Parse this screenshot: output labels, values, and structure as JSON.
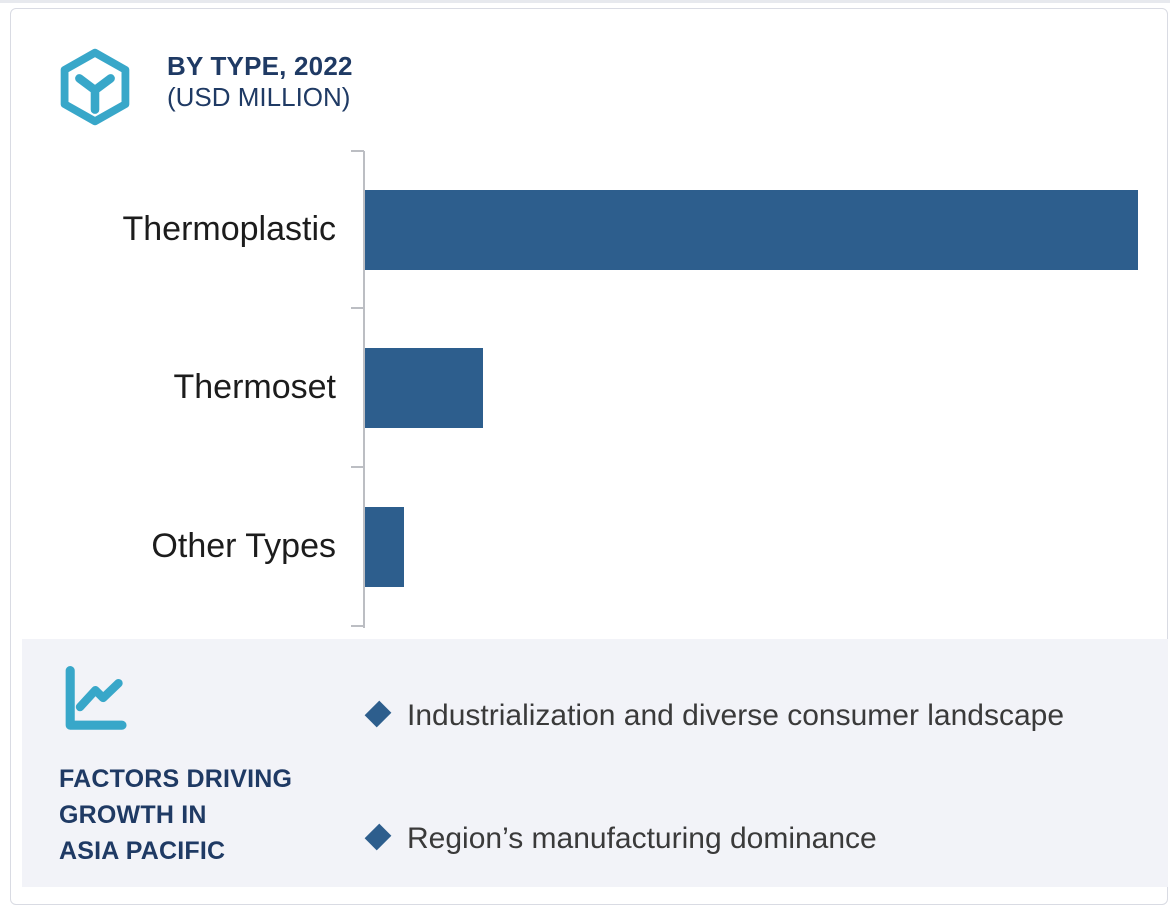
{
  "colors": {
    "teal_icon": "#38a7c9",
    "navy_heading": "#1f3a64",
    "bar_blue": "#2d5e8d",
    "panel_background": "#f2f3f8",
    "axis_gray": "#bcbec3",
    "bullet_text_gray": "#3a3a3a"
  },
  "header": {
    "title": "BY TYPE, 2022",
    "subtitle": "(USD MILLION)",
    "icon": "hexagon-cube-icon"
  },
  "chart_data": {
    "type": "bar",
    "orientation": "horizontal",
    "title": "BY TYPE, 2022",
    "subtitle": "(USD MILLION)",
    "unit": "USD Million",
    "categories": [
      "Thermoplastic",
      "Thermoset",
      "Other Types"
    ],
    "values_pct_of_max": [
      100,
      15.3,
      5.0
    ],
    "bar_color": "#2d5e8d",
    "value_axis_visible": false,
    "gridlines": false,
    "legend": "none"
  },
  "factors_panel": {
    "icon": "line-chart-icon",
    "heading_lines": [
      "FACTORS DRIVING",
      "GROWTH IN",
      "ASIA PACIFIC"
    ],
    "bullets": [
      {
        "marker": "diamond",
        "text": "Industrialization and diverse consumer landscape"
      },
      {
        "marker": "diamond",
        "text": "Region’s manufacturing dominance"
      }
    ]
  }
}
